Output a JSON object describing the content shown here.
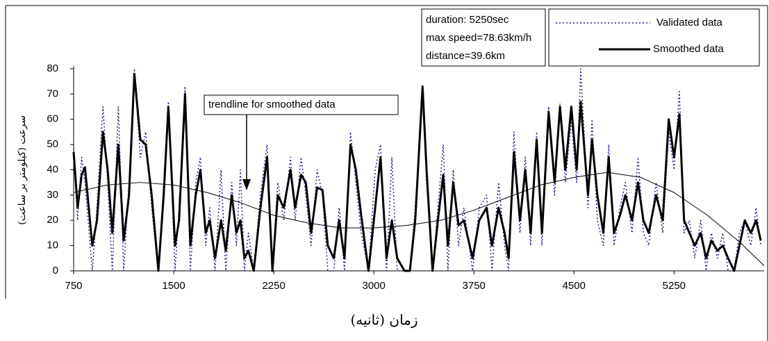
{
  "chart_data": {
    "type": "line",
    "x_label": "زمان (ثانیه)",
    "y_label": "سرعت (کیلومتر بر ساعت)",
    "xlim": [
      750,
      5925
    ],
    "xticks": [
      750,
      1500,
      2250,
      3000,
      3750,
      4500,
      5250
    ],
    "ylim": [
      0,
      80
    ],
    "yticks": [
      0,
      10,
      20,
      30,
      40,
      50,
      60,
      70,
      80
    ],
    "stats": [
      "duration: 5250sec",
      "max speed=78.63km/h",
      "distance=39.6km"
    ],
    "annotation": "trendline for smoothed data",
    "x": [
      750,
      780,
      810,
      835,
      890,
      925,
      970,
      1005,
      1040,
      1085,
      1125,
      1165,
      1205,
      1250,
      1290,
      1335,
      1385,
      1425,
      1460,
      1510,
      1540,
      1585,
      1625,
      1665,
      1700,
      1740,
      1770,
      1810,
      1855,
      1890,
      1935,
      1970,
      2000,
      2030,
      2060,
      2100,
      2150,
      2200,
      2240,
      2280,
      2325,
      2375,
      2410,
      2455,
      2490,
      2530,
      2575,
      2615,
      2655,
      2700,
      2740,
      2780,
      2825,
      2865,
      2905,
      2960,
      3010,
      3050,
      3095,
      3135,
      3175,
      3230,
      3270,
      3310,
      3365,
      3395,
      3440,
      3480,
      3520,
      3555,
      3595,
      3635,
      3675,
      3740,
      3790,
      3845,
      3885,
      3935,
      3980,
      4010,
      4050,
      4095,
      4135,
      4175,
      4220,
      4260,
      4310,
      4355,
      4395,
      4435,
      4480,
      4520,
      4550,
      4605,
      4635,
      4675,
      4720,
      4760,
      4800,
      4845,
      4885,
      4935,
      4980,
      5020,
      5060,
      5115,
      5165,
      5210,
      5250,
      5290,
      5325,
      5365,
      5405,
      5450,
      5490,
      5530,
      5575,
      5615,
      5655,
      5700,
      5740,
      5780,
      5825,
      5865,
      5900
    ],
    "series": [
      {
        "name": "Validated data",
        "color": "#1f1f8f",
        "style": "dotted",
        "values": [
          50,
          20,
          45,
          35,
          0,
          25,
          65,
          35,
          0,
          65,
          0,
          35,
          80,
          45,
          55,
          25,
          0,
          35,
          67,
          0,
          25,
          73,
          0,
          35,
          45,
          10,
          25,
          0,
          40,
          0,
          35,
          10,
          40,
          0,
          15,
          0,
          30,
          50,
          0,
          35,
          20,
          45,
          20,
          45,
          30,
          10,
          40,
          30,
          0,
          0,
          25,
          0,
          55,
          35,
          15,
          0,
          40,
          50,
          0,
          45,
          0,
          0,
          0,
          25,
          70,
          35,
          0,
          25,
          50,
          0,
          40,
          10,
          25,
          0,
          25,
          30,
          0,
          35,
          10,
          0,
          55,
          15,
          45,
          10,
          55,
          10,
          65,
          30,
          66,
          35,
          60,
          35,
          80,
          25,
          60,
          20,
          10,
          50,
          10,
          25,
          35,
          15,
          45,
          15,
          10,
          35,
          15,
          55,
          40,
          71,
          15,
          20,
          5,
          20,
          0,
          15,
          5,
          15,
          0,
          0,
          15,
          20,
          10,
          25,
          10
        ]
      },
      {
        "name": "Smoothed data",
        "color": "#000000",
        "style": "solid",
        "values": [
          47,
          25,
          38,
          41,
          10,
          20,
          55,
          40,
          15,
          50,
          12,
          30,
          78,
          52,
          50,
          30,
          0,
          30,
          65,
          10,
          20,
          70,
          10,
          30,
          40,
          15,
          20,
          5,
          20,
          8,
          30,
          15,
          20,
          5,
          8,
          0,
          25,
          45,
          0,
          30,
          25,
          40,
          25,
          38,
          35,
          15,
          33,
          32,
          10,
          5,
          20,
          5,
          50,
          40,
          22,
          0,
          25,
          45,
          5,
          20,
          5,
          0,
          0,
          20,
          73,
          40,
          0,
          20,
          38,
          10,
          35,
          18,
          20,
          5,
          20,
          25,
          10,
          25,
          15,
          5,
          47,
          20,
          40,
          15,
          52,
          15,
          63,
          35,
          65,
          40,
          65,
          40,
          67,
          30,
          52,
          30,
          15,
          45,
          15,
          22,
          30,
          20,
          35,
          20,
          15,
          30,
          20,
          60,
          45,
          62,
          20,
          15,
          10,
          15,
          5,
          12,
          8,
          10,
          5,
          0,
          10,
          20,
          15,
          20,
          12
        ]
      }
    ],
    "trendline": {
      "color": "#000000",
      "x": [
        750,
        1000,
        1250,
        1500,
        1750,
        2000,
        2250,
        2500,
        2750,
        3000,
        3250,
        3500,
        3750,
        4000,
        4250,
        4500,
        4750,
        5000,
        5250,
        5500,
        5750,
        5925
      ],
      "values": [
        31,
        34,
        35,
        34,
        31,
        27,
        22,
        19,
        17,
        17,
        18,
        20,
        24,
        29,
        34,
        37,
        39,
        37,
        31,
        22,
        11,
        2
      ]
    }
  }
}
